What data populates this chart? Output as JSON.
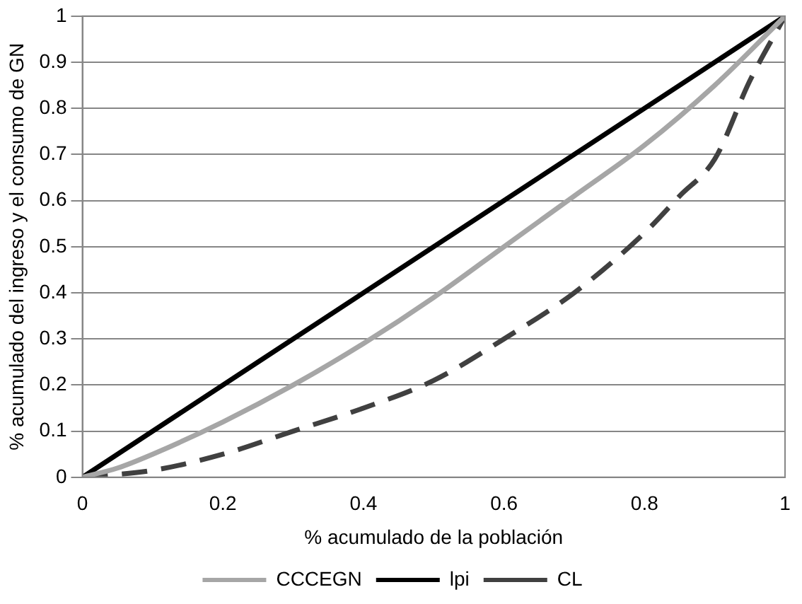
{
  "chart_data": {
    "type": "line",
    "xlabel": "% acumulado de la población",
    "ylabel": "% acumulado del ingreso y el consumo de GN",
    "xlim": [
      0,
      1
    ],
    "xticks": [
      0,
      0.2,
      0.4,
      0.6,
      0.8,
      1
    ],
    "ylim": [
      0,
      1
    ],
    "yticks": [
      0,
      0.1,
      0.2,
      0.3,
      0.4,
      0.5,
      0.6,
      0.7,
      0.8,
      0.9,
      1
    ],
    "grid": "y",
    "legend": "bottom",
    "marker": "none",
    "series": [
      {
        "name": "CCCEGN",
        "color": "#a6a6a6",
        "line_style": "solid",
        "x": [
          0,
          0.05,
          0.1,
          0.2,
          0.3,
          0.4,
          0.5,
          0.6,
          0.7,
          0.8,
          0.9,
          1
        ],
        "values": [
          0,
          0.02,
          0.05,
          0.12,
          0.2,
          0.29,
          0.39,
          0.5,
          0.61,
          0.72,
          0.85,
          1
        ]
      },
      {
        "name": "lpi",
        "color": "#000000",
        "line_style": "solid",
        "x": [
          0,
          1
        ],
        "values": [
          0,
          1
        ]
      },
      {
        "name": "CL",
        "color": "#404040",
        "line_style": "dashed",
        "x": [
          0,
          0.1,
          0.2,
          0.3,
          0.4,
          0.5,
          0.6,
          0.7,
          0.8,
          0.85,
          0.9,
          0.95,
          1
        ],
        "values": [
          0,
          0.015,
          0.05,
          0.1,
          0.15,
          0.21,
          0.3,
          0.4,
          0.53,
          0.61,
          0.69,
          0.86,
          1
        ]
      }
    ]
  }
}
